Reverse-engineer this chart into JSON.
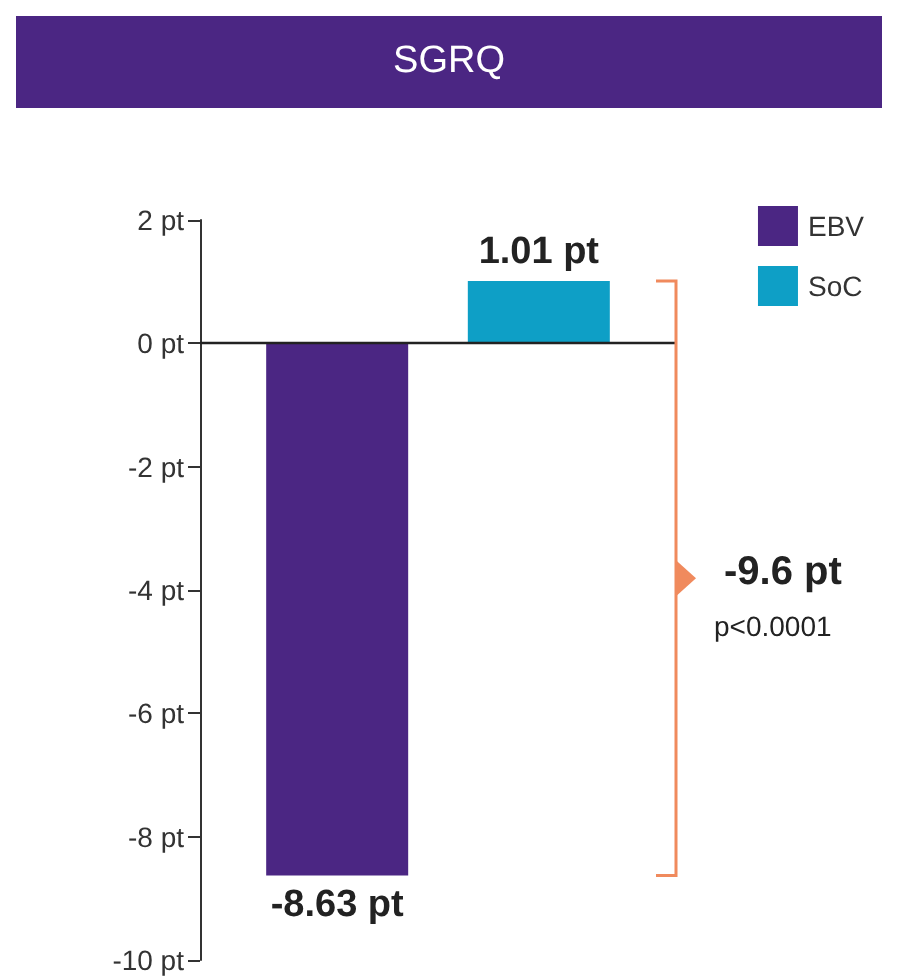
{
  "chart_data": {
    "type": "bar",
    "title": "SGRQ",
    "categories": [
      null
    ],
    "series": [
      {
        "name": "EBV",
        "color": "#4b2683",
        "values": [
          -8.63
        ],
        "value_labels": [
          "-8.63 pt"
        ]
      },
      {
        "name": "SoC",
        "color": "#0e9fc6",
        "values": [
          1.01
        ],
        "value_labels": [
          "1.01 pt"
        ]
      }
    ],
    "ylim": [
      -10,
      2
    ],
    "yticks": [
      {
        "value": -10,
        "label": "-10 pt"
      },
      {
        "value": -8,
        "label": "-8 pt"
      },
      {
        "value": -6,
        "label": "-6 pt"
      },
      {
        "value": -4,
        "label": "-4 pt"
      },
      {
        "value": -2,
        "label": "-2 pt"
      },
      {
        "value": 0,
        "label": "0 pt"
      },
      {
        "value": 2,
        "label": "2 pt"
      }
    ],
    "annotations": [
      "-9.6 pt",
      "p<0.0001"
    ],
    "ref_lines": [
      {
        "axis": "y",
        "value": 0,
        "color": "#222222"
      }
    ],
    "legend": "top right",
    "grid": false
  }
}
